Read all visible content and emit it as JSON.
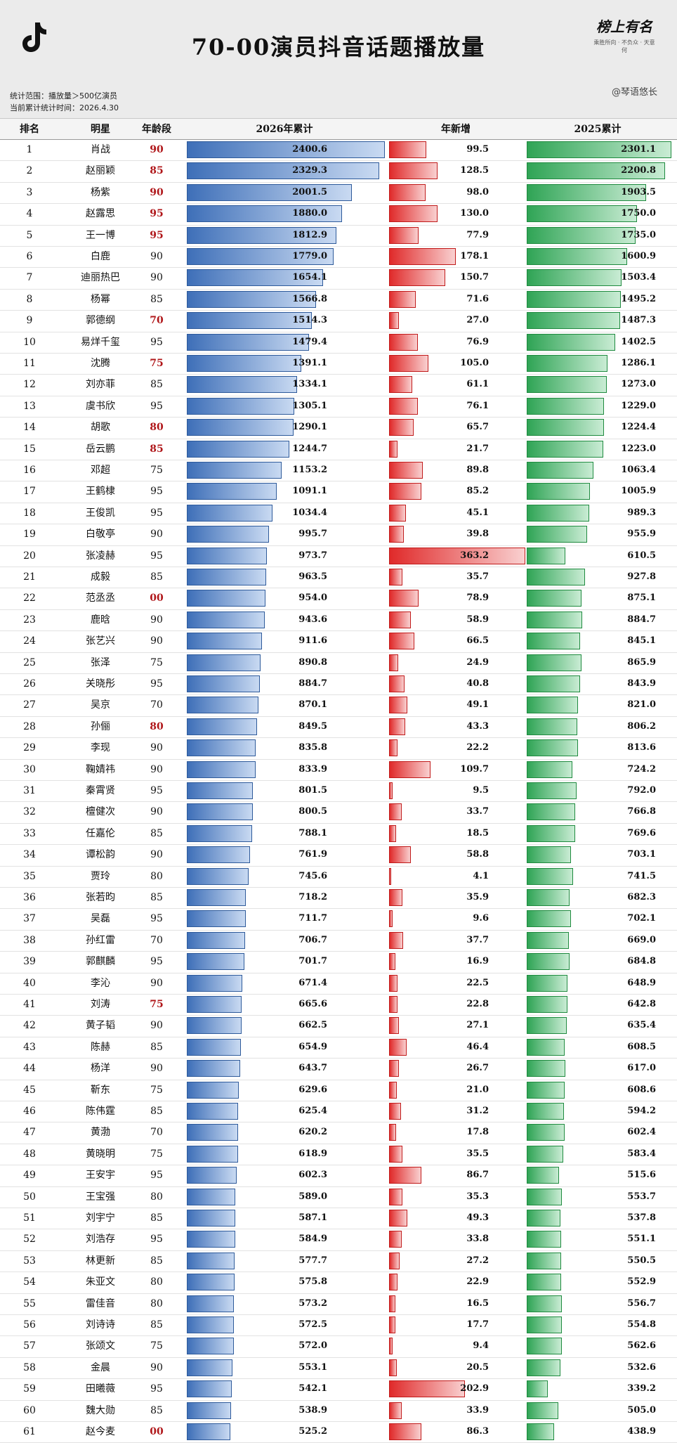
{
  "header": {
    "title": "70-00演员抖音话题播放量",
    "brand_name": "榜上有名",
    "brand_slogan": "乘胜所向 · 不负众 · 天意何",
    "author": "@琴语悠长",
    "note_range": "统计范围：播放量＞500亿演员",
    "note_time": "当前累计统计时间：2026.4.30"
  },
  "columns": {
    "rank": "排名",
    "name": "明星",
    "age": "年龄段",
    "cum2026": "2026年累计",
    "new": "年新增",
    "cum2025": "2025累计"
  },
  "colors": {
    "blue": "#3e6fb8",
    "red": "#e02a2a",
    "green": "#2fa455",
    "age_highlight": "#b0171a"
  },
  "chart_data": {
    "type": "bar",
    "title": "70-00演员抖音话题播放量",
    "series_names": [
      "2026年累计",
      "年新增",
      "2025累计"
    ],
    "rows": [
      {
        "rank": "1",
        "name": "肖战",
        "age": "90",
        "cum2026": "2400.6",
        "new": "99.5",
        "cum2025": "2301.1"
      },
      {
        "rank": "2",
        "name": "赵丽颖",
        "age": "85",
        "cum2026": "2329.3",
        "new": "128.5",
        "cum2025": "2200.8"
      },
      {
        "rank": "3",
        "name": "杨紫",
        "age": "90",
        "cum2026": "2001.5",
        "new": "98.0",
        "cum2025": "1903.5"
      },
      {
        "rank": "4",
        "name": "赵露思",
        "age": "95",
        "cum2026": "1880.0",
        "new": "130.0",
        "cum2025": "1750.0"
      },
      {
        "rank": "5",
        "name": "王一博",
        "age": "95",
        "cum2026": "1812.9",
        "new": "77.9",
        "cum2025": "1735.0"
      },
      {
        "rank": "6",
        "name": "白鹿",
        "age": "90",
        "cum2026": "1779.0",
        "new": "178.1",
        "cum2025": "1600.9"
      },
      {
        "rank": "7",
        "name": "迪丽热巴",
        "age": "90",
        "cum2026": "1654.1",
        "new": "150.7",
        "cum2025": "1503.4"
      },
      {
        "rank": "8",
        "name": "杨幂",
        "age": "85",
        "cum2026": "1566.8",
        "new": "71.6",
        "cum2025": "1495.2"
      },
      {
        "rank": "9",
        "name": "郭德纲",
        "age": "70",
        "cum2026": "1514.3",
        "new": "27.0",
        "cum2025": "1487.3"
      },
      {
        "rank": "10",
        "name": "易烊千玺",
        "age": "95",
        "cum2026": "1479.4",
        "new": "76.9",
        "cum2025": "1402.5"
      },
      {
        "rank": "11",
        "name": "沈腾",
        "age": "75",
        "cum2026": "1391.1",
        "new": "105.0",
        "cum2025": "1286.1"
      },
      {
        "rank": "12",
        "name": "刘亦菲",
        "age": "85",
        "cum2026": "1334.1",
        "new": "61.1",
        "cum2025": "1273.0"
      },
      {
        "rank": "13",
        "name": "虞书欣",
        "age": "95",
        "cum2026": "1305.1",
        "new": "76.1",
        "cum2025": "1229.0"
      },
      {
        "rank": "14",
        "name": "胡歌",
        "age": "80",
        "cum2026": "1290.1",
        "new": "65.7",
        "cum2025": "1224.4"
      },
      {
        "rank": "15",
        "name": "岳云鹏",
        "age": "85",
        "cum2026": "1244.7",
        "new": "21.7",
        "cum2025": "1223.0"
      },
      {
        "rank": "16",
        "name": "邓超",
        "age": "75",
        "cum2026": "1153.2",
        "new": "89.8",
        "cum2025": "1063.4"
      },
      {
        "rank": "17",
        "name": "王鹤棣",
        "age": "95",
        "cum2026": "1091.1",
        "new": "85.2",
        "cum2025": "1005.9"
      },
      {
        "rank": "18",
        "name": "王俊凯",
        "age": "95",
        "cum2026": "1034.4",
        "new": "45.1",
        "cum2025": "989.3"
      },
      {
        "rank": "19",
        "name": "白敬亭",
        "age": "90",
        "cum2026": "995.7",
        "new": "39.8",
        "cum2025": "955.9"
      },
      {
        "rank": "20",
        "name": "张凌赫",
        "age": "95",
        "cum2026": "973.7",
        "new": "363.2",
        "cum2025": "610.5"
      },
      {
        "rank": "21",
        "name": "成毅",
        "age": "85",
        "cum2026": "963.5",
        "new": "35.7",
        "cum2025": "927.8"
      },
      {
        "rank": "22",
        "name": "范丞丞",
        "age": "00",
        "cum2026": "954.0",
        "new": "78.9",
        "cum2025": "875.1"
      },
      {
        "rank": "23",
        "name": "鹿晗",
        "age": "90",
        "cum2026": "943.6",
        "new": "58.9",
        "cum2025": "884.7"
      },
      {
        "rank": "24",
        "name": "张艺兴",
        "age": "90",
        "cum2026": "911.6",
        "new": "66.5",
        "cum2025": "845.1"
      },
      {
        "rank": "25",
        "name": "张泽",
        "age": "75",
        "cum2026": "890.8",
        "new": "24.9",
        "cum2025": "865.9"
      },
      {
        "rank": "26",
        "name": "关晓彤",
        "age": "95",
        "cum2026": "884.7",
        "new": "40.8",
        "cum2025": "843.9"
      },
      {
        "rank": "27",
        "name": "吴京",
        "age": "70",
        "cum2026": "870.1",
        "new": "49.1",
        "cum2025": "821.0"
      },
      {
        "rank": "28",
        "name": "孙俪",
        "age": "80",
        "cum2026": "849.5",
        "new": "43.3",
        "cum2025": "806.2"
      },
      {
        "rank": "29",
        "name": "李现",
        "age": "90",
        "cum2026": "835.8",
        "new": "22.2",
        "cum2025": "813.6"
      },
      {
        "rank": "30",
        "name": "鞠婧祎",
        "age": "90",
        "cum2026": "833.9",
        "new": "109.7",
        "cum2025": "724.2"
      },
      {
        "rank": "31",
        "name": "秦霄贤",
        "age": "95",
        "cum2026": "801.5",
        "new": "9.5",
        "cum2025": "792.0"
      },
      {
        "rank": "32",
        "name": "檀健次",
        "age": "90",
        "cum2026": "800.5",
        "new": "33.7",
        "cum2025": "766.8"
      },
      {
        "rank": "33",
        "name": "任嘉伦",
        "age": "85",
        "cum2026": "788.1",
        "new": "18.5",
        "cum2025": "769.6"
      },
      {
        "rank": "34",
        "name": "谭松韵",
        "age": "90",
        "cum2026": "761.9",
        "new": "58.8",
        "cum2025": "703.1"
      },
      {
        "rank": "35",
        "name": "贾玲",
        "age": "80",
        "cum2026": "745.6",
        "new": "4.1",
        "cum2025": "741.5"
      },
      {
        "rank": "36",
        "name": "张若昀",
        "age": "85",
        "cum2026": "718.2",
        "new": "35.9",
        "cum2025": "682.3"
      },
      {
        "rank": "37",
        "name": "吴磊",
        "age": "95",
        "cum2026": "711.7",
        "new": "9.6",
        "cum2025": "702.1"
      },
      {
        "rank": "38",
        "name": "孙红雷",
        "age": "70",
        "cum2026": "706.7",
        "new": "37.7",
        "cum2025": "669.0"
      },
      {
        "rank": "39",
        "name": "郭麒麟",
        "age": "95",
        "cum2026": "701.7",
        "new": "16.9",
        "cum2025": "684.8"
      },
      {
        "rank": "40",
        "name": "李沁",
        "age": "90",
        "cum2026": "671.4",
        "new": "22.5",
        "cum2025": "648.9"
      },
      {
        "rank": "41",
        "name": "刘涛",
        "age": "75",
        "cum2026": "665.6",
        "new": "22.8",
        "cum2025": "642.8"
      },
      {
        "rank": "42",
        "name": "黄子韬",
        "age": "90",
        "cum2026": "662.5",
        "new": "27.1",
        "cum2025": "635.4"
      },
      {
        "rank": "43",
        "name": "陈赫",
        "age": "85",
        "cum2026": "654.9",
        "new": "46.4",
        "cum2025": "608.5"
      },
      {
        "rank": "44",
        "name": "杨洋",
        "age": "90",
        "cum2026": "643.7",
        "new": "26.7",
        "cum2025": "617.0"
      },
      {
        "rank": "45",
        "name": "靳东",
        "age": "75",
        "cum2026": "629.6",
        "new": "21.0",
        "cum2025": "608.6"
      },
      {
        "rank": "46",
        "name": "陈伟霆",
        "age": "85",
        "cum2026": "625.4",
        "new": "31.2",
        "cum2025": "594.2"
      },
      {
        "rank": "47",
        "name": "黄渤",
        "age": "70",
        "cum2026": "620.2",
        "new": "17.8",
        "cum2025": "602.4"
      },
      {
        "rank": "48",
        "name": "黄晓明",
        "age": "75",
        "cum2026": "618.9",
        "new": "35.5",
        "cum2025": "583.4"
      },
      {
        "rank": "49",
        "name": "王安宇",
        "age": "95",
        "cum2026": "602.3",
        "new": "86.7",
        "cum2025": "515.6"
      },
      {
        "rank": "50",
        "name": "王宝强",
        "age": "80",
        "cum2026": "589.0",
        "new": "35.3",
        "cum2025": "553.7"
      },
      {
        "rank": "51",
        "name": "刘宇宁",
        "age": "85",
        "cum2026": "587.1",
        "new": "49.3",
        "cum2025": "537.8"
      },
      {
        "rank": "52",
        "name": "刘浩存",
        "age": "95",
        "cum2026": "584.9",
        "new": "33.8",
        "cum2025": "551.1"
      },
      {
        "rank": "53",
        "name": "林更新",
        "age": "85",
        "cum2026": "577.7",
        "new": "27.2",
        "cum2025": "550.5"
      },
      {
        "rank": "54",
        "name": "朱亚文",
        "age": "80",
        "cum2026": "575.8",
        "new": "22.9",
        "cum2025": "552.9"
      },
      {
        "rank": "55",
        "name": "雷佳音",
        "age": "80",
        "cum2026": "573.2",
        "new": "16.5",
        "cum2025": "556.7"
      },
      {
        "rank": "56",
        "name": "刘诗诗",
        "age": "85",
        "cum2026": "572.5",
        "new": "17.7",
        "cum2025": "554.8"
      },
      {
        "rank": "57",
        "name": "张颂文",
        "age": "75",
        "cum2026": "572.0",
        "new": "9.4",
        "cum2025": "562.6"
      },
      {
        "rank": "58",
        "name": "金晨",
        "age": "90",
        "cum2026": "553.1",
        "new": "20.5",
        "cum2025": "532.6"
      },
      {
        "rank": "59",
        "name": "田曦薇",
        "age": "95",
        "cum2026": "542.1",
        "new": "202.9",
        "cum2025": "339.2"
      },
      {
        "rank": "60",
        "name": "魏大勋",
        "age": "85",
        "cum2026": "538.9",
        "new": "33.9",
        "cum2025": "505.0"
      },
      {
        "rank": "61",
        "name": "赵今麦",
        "age": "00",
        "cum2026": "525.2",
        "new": "86.3",
        "cum2025": "438.9"
      }
    ],
    "red_age_ranks": [
      "1",
      "2",
      "3",
      "4",
      "5",
      "9",
      "11",
      "14",
      "15",
      "22",
      "28",
      "41",
      "61"
    ]
  }
}
